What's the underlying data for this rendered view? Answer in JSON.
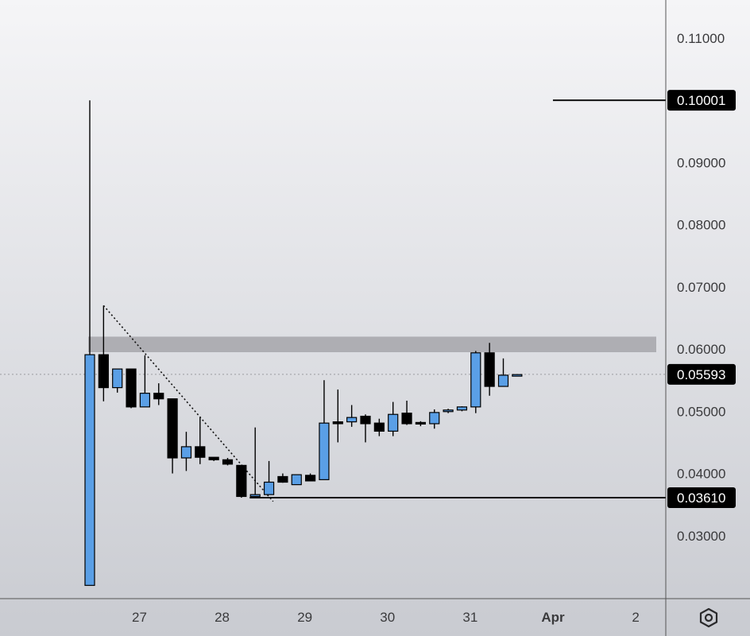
{
  "chart_data": {
    "type": "candlestick",
    "y_axis": {
      "ticks": [
        "0.11000",
        "0.09000",
        "0.08000",
        "0.07000",
        "0.06000",
        "0.05000",
        "0.04000",
        "0.03000"
      ],
      "range": [
        0.0215,
        0.1165
      ]
    },
    "x_axis": {
      "labels": [
        {
          "text": "27",
          "at": 3.6
        },
        {
          "text": "28",
          "at": 9.6
        },
        {
          "text": "29",
          "at": 15.6
        },
        {
          "text": "30",
          "at": 21.6
        },
        {
          "text": "31",
          "at": 27.6
        },
        {
          "text": "Apr",
          "at": 33.6
        },
        {
          "text": "2",
          "at": 39.6
        }
      ],
      "bold_labels": [
        "Apr"
      ]
    },
    "candles": [
      {
        "o": 0.022,
        "h": 0.1,
        "l": 0.022,
        "c": 0.0591
      },
      {
        "o": 0.0591,
        "h": 0.067,
        "l": 0.0516,
        "c": 0.0538
      },
      {
        "o": 0.0538,
        "h": 0.0565,
        "l": 0.053,
        "c": 0.0568
      },
      {
        "o": 0.0568,
        "h": 0.0565,
        "l": 0.0505,
        "c": 0.0507
      },
      {
        "o": 0.0507,
        "h": 0.059,
        "l": 0.0507,
        "c": 0.0529
      },
      {
        "o": 0.0529,
        "h": 0.0545,
        "l": 0.051,
        "c": 0.052
      },
      {
        "o": 0.052,
        "h": 0.052,
        "l": 0.04,
        "c": 0.0425
      },
      {
        "o": 0.0425,
        "h": 0.0467,
        "l": 0.0404,
        "c": 0.0443
      },
      {
        "o": 0.0443,
        "h": 0.049,
        "l": 0.0415,
        "c": 0.0426
      },
      {
        "o": 0.0426,
        "h": 0.0426,
        "l": 0.042,
        "c": 0.0422
      },
      {
        "o": 0.0422,
        "h": 0.0425,
        "l": 0.0413,
        "c": 0.0415
      },
      {
        "o": 0.0413,
        "h": 0.0413,
        "l": 0.0361,
        "c": 0.0363
      },
      {
        "o": 0.0363,
        "h": 0.0474,
        "l": 0.0361,
        "c": 0.0366
      },
      {
        "o": 0.0366,
        "h": 0.042,
        "l": 0.0366,
        "c": 0.0386
      },
      {
        "o": 0.0395,
        "h": 0.04,
        "l": 0.0385,
        "c": 0.0386
      },
      {
        "o": 0.0382,
        "h": 0.0397,
        "l": 0.0382,
        "c": 0.0398
      },
      {
        "o": 0.0397,
        "h": 0.04,
        "l": 0.039,
        "c": 0.0388
      },
      {
        "o": 0.039,
        "h": 0.055,
        "l": 0.039,
        "c": 0.0481
      },
      {
        "o": 0.0483,
        "h": 0.0535,
        "l": 0.045,
        "c": 0.048
      },
      {
        "o": 0.0483,
        "h": 0.051,
        "l": 0.0475,
        "c": 0.049
      },
      {
        "o": 0.0492,
        "h": 0.0495,
        "l": 0.045,
        "c": 0.048
      },
      {
        "o": 0.0481,
        "h": 0.0488,
        "l": 0.046,
        "c": 0.0468
      },
      {
        "o": 0.0468,
        "h": 0.0515,
        "l": 0.046,
        "c": 0.0495
      },
      {
        "o": 0.0497,
        "h": 0.0517,
        "l": 0.0478,
        "c": 0.048
      },
      {
        "o": 0.0482,
        "h": 0.0484,
        "l": 0.0476,
        "c": 0.048
      },
      {
        "o": 0.048,
        "h": 0.0503,
        "l": 0.0472,
        "c": 0.0498
      },
      {
        "o": 0.05,
        "h": 0.0504,
        "l": 0.0497,
        "c": 0.0502
      },
      {
        "o": 0.0502,
        "h": 0.0508,
        "l": 0.05,
        "c": 0.0507
      },
      {
        "o": 0.0507,
        "h": 0.0597,
        "l": 0.0497,
        "c": 0.0594
      },
      {
        "o": 0.0594,
        "h": 0.061,
        "l": 0.0525,
        "c": 0.054
      },
      {
        "o": 0.054,
        "h": 0.0585,
        "l": 0.054,
        "c": 0.0558
      },
      {
        "o": 0.0559,
        "h": 0.0559,
        "l": 0.0559,
        "c": 0.0559
      }
    ],
    "colors": {
      "up": "#5a9fe6",
      "down": "#000000",
      "outline": "#000000",
      "zone": "#a9a9ad"
    },
    "resistance_zone": [
      0.0595,
      0.062
    ],
    "horizontal_lines": [
      {
        "price": 0.10001,
        "label": "0.10001",
        "from": 33.6
      },
      {
        "price": 0.0361,
        "label": "0.03610",
        "from": 11.6
      }
    ],
    "current_price": {
      "price": 0.05593,
      "label": "0.05593"
    },
    "trendline": {
      "from": [
        1.0,
        0.067
      ],
      "to": [
        13.3,
        0.0355
      ],
      "style": "dotted"
    }
  },
  "ui": {
    "settings_icon": "hexagon-gear-icon"
  }
}
